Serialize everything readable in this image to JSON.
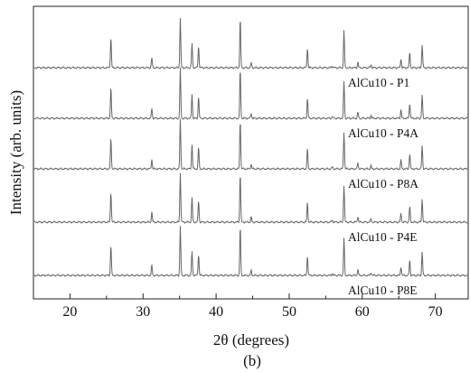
{
  "chart_data": {
    "type": "line",
    "subtype": "stacked-xrd-patterns",
    "xlabel": "2θ (degrees)",
    "ylabel": "Intensity (arb. units)",
    "panel_label": "(b)",
    "xlim": [
      15,
      74.5
    ],
    "x_ticks": [
      20,
      30,
      40,
      50,
      60,
      70
    ],
    "y_ticks": [],
    "grid": false,
    "legend": "none",
    "line_color": "#666666",
    "peaks": [
      {
        "two_theta": 25.6,
        "height": 0.62
      },
      {
        "two_theta": 31.2,
        "height": 0.2
      },
      {
        "two_theta": 35.1,
        "height": 1.0
      },
      {
        "two_theta": 36.7,
        "height": 0.49
      },
      {
        "two_theta": 37.6,
        "height": 0.44
      },
      {
        "two_theta": 43.3,
        "height": 1.0
      },
      {
        "two_theta": 44.8,
        "height": 0.1
      },
      {
        "two_theta": 52.5,
        "height": 0.4
      },
      {
        "two_theta": 55.9,
        "height": 0.04
      },
      {
        "two_theta": 57.5,
        "height": 0.75
      },
      {
        "two_theta": 59.4,
        "height": 0.12
      },
      {
        "two_theta": 61.2,
        "height": 0.06
      },
      {
        "two_theta": 65.3,
        "height": 0.18
      },
      {
        "two_theta": 66.5,
        "height": 0.31
      },
      {
        "two_theta": 68.2,
        "height": 0.47
      }
    ],
    "series": [
      {
        "name": "AlCu10 - P1"
      },
      {
        "name": "AlCu10 - P4A"
      },
      {
        "name": "AlCu10 - P8A"
      },
      {
        "name": "AlCu10 - P4E"
      },
      {
        "name": "AlCu10 - P8E"
      }
    ]
  }
}
